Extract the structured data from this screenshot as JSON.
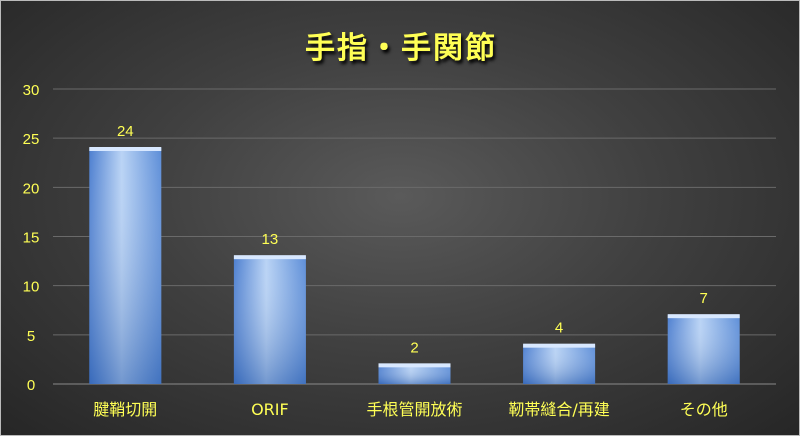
{
  "chart_data": {
    "type": "bar",
    "title": "手指・手関節",
    "categories": [
      "腱鞘切開",
      "ORIF",
      "手根管開放術",
      "靭帯縫合/再建",
      "その他"
    ],
    "values": [
      24,
      13,
      2,
      4,
      7
    ],
    "ylim": [
      0,
      30
    ],
    "yticks": [
      0,
      5,
      10,
      15,
      20,
      25,
      30
    ],
    "grid": true,
    "data_labels": true,
    "colors": {
      "bar": "#6f9be0",
      "text": "#ffff55",
      "background": "#404040"
    }
  }
}
